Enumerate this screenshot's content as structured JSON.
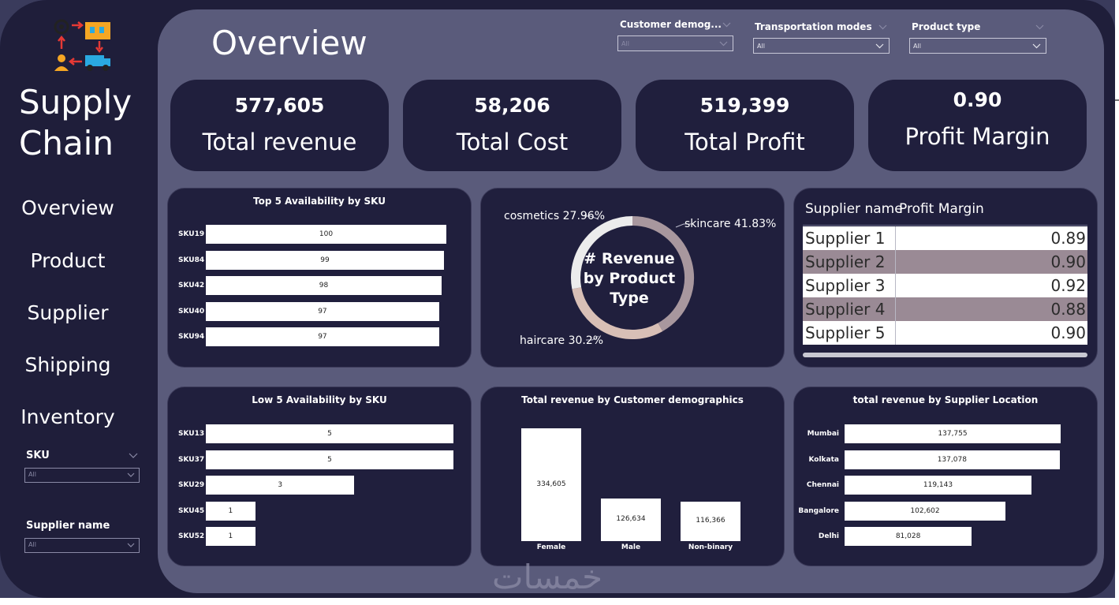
{
  "sidebar": {
    "title_line1": "Supply",
    "title_line2": "Chain",
    "nav": [
      "Overview",
      "Product",
      "Supplier",
      "Shipping",
      "Inventory"
    ],
    "filters": [
      {
        "label": "SKU",
        "value": "All"
      },
      {
        "label": "Supplier name",
        "value": "All"
      }
    ]
  },
  "header": {
    "page_title": "Overview",
    "filters": [
      {
        "label": "Customer demog...",
        "value": "All"
      },
      {
        "label": "Transportation modes",
        "value": "All"
      },
      {
        "label": "Product type",
        "value": "All"
      }
    ]
  },
  "kpis": [
    {
      "value": "577,605",
      "label": "Total revenue"
    },
    {
      "value": "58,206",
      "label": "Total Cost"
    },
    {
      "value": "519,399",
      "label": "Total Profit"
    },
    {
      "value": "0.90",
      "label": "Profit Margin"
    }
  ],
  "supplier_table": {
    "headers": [
      "Supplier name",
      "Profit Margin"
    ],
    "rows": [
      {
        "name": "Supplier 1",
        "margin": "0.89"
      },
      {
        "name": "Supplier 2",
        "margin": "0.90"
      },
      {
        "name": "Supplier 3",
        "margin": "0.92"
      },
      {
        "name": "Supplier 4",
        "margin": "0.88"
      },
      {
        "name": "Supplier 5",
        "margin": "0.90"
      }
    ]
  },
  "colors": {
    "frame": "#1f1e3a",
    "canvas": "#5a5b7b",
    "card": "#201f3d",
    "bar": "#ffffff",
    "row_highlight": "#9a8a95",
    "donut_skincare": "#a8979e",
    "donut_haircare": "#d8bfb6",
    "donut_cosmetics": "#ececec"
  },
  "watermark": "خمسات",
  "chart_data": [
    {
      "type": "bar",
      "orientation": "horizontal",
      "title": "Top 5 Availability by SKU",
      "categories": [
        "SKU19",
        "SKU84",
        "SKU42",
        "SKU40",
        "SKU94"
      ],
      "values": [
        100,
        99,
        98,
        97,
        97
      ],
      "data_labels": [
        "100",
        "99",
        "98",
        "97",
        "97"
      ],
      "xlim": [
        0,
        100
      ]
    },
    {
      "type": "pie",
      "variant": "donut",
      "title": "# Revenue by Product Type",
      "categories": [
        "skincare",
        "haircare",
        "cosmetics"
      ],
      "values": [
        41.83,
        30.2,
        27.96
      ],
      "data_labels": [
        "skincare 41.83%",
        "haircare 30.2%",
        "cosmetics 27.96%"
      ]
    },
    {
      "type": "bar",
      "orientation": "horizontal",
      "title": "Low 5 Availability by SKU",
      "categories": [
        "SKU13",
        "SKU37",
        "SKU29",
        "SKU45",
        "SKU52"
      ],
      "values": [
        5,
        5,
        3,
        1,
        1
      ],
      "data_labels": [
        "5",
        "5",
        "3",
        "1",
        "1"
      ],
      "xlim": [
        0,
        5
      ]
    },
    {
      "type": "bar",
      "orientation": "vertical",
      "title": "Total revenue by Customer demographics",
      "categories": [
        "Female",
        "Male",
        "Non-binary"
      ],
      "values": [
        334605,
        126634,
        116366
      ],
      "data_labels": [
        "334,605",
        "126,634",
        "116,366"
      ],
      "ylim": [
        0,
        334605
      ]
    },
    {
      "type": "bar",
      "orientation": "horizontal",
      "title": "total revenue by Supplier Location",
      "categories": [
        "Mumbai",
        "Kolkata",
        "Chennai",
        "Bangalore",
        "Delhi"
      ],
      "values": [
        137755,
        137078,
        119143,
        102602,
        81028
      ],
      "data_labels": [
        "137,755",
        "137,078",
        "119,143",
        "102,602",
        "81,028"
      ],
      "xlim": [
        0,
        137755
      ]
    }
  ]
}
